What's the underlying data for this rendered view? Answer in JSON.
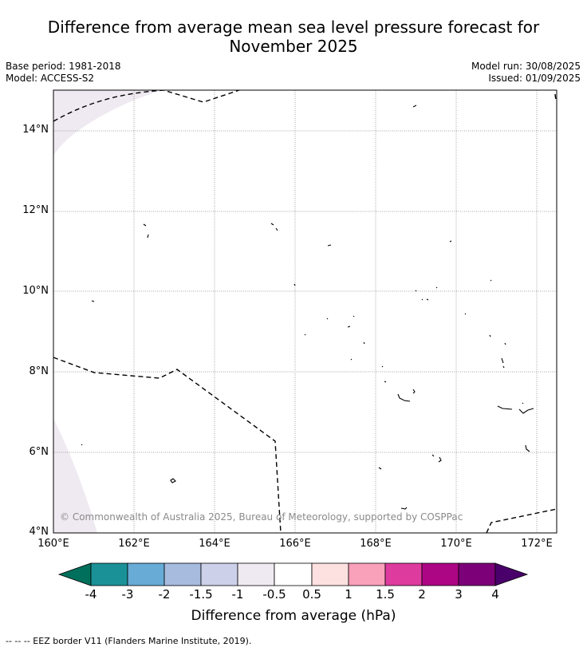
{
  "title_line1": "Difference from average mean sea level pressure forecast for",
  "title_line2": "November 2025",
  "meta_left": {
    "base_period": "Base period: 1981-2018",
    "model": "Model: ACCESS-S2"
  },
  "meta_right": {
    "model_run": "Model run: 30/08/2025",
    "issued": "Issued: 01/09/2025"
  },
  "map": {
    "lat_labels": [
      "14°N",
      "12°N",
      "10°N",
      "8°N",
      "6°N",
      "4°N"
    ],
    "lon_labels": [
      "160°E",
      "162°E",
      "164°E",
      "166°E",
      "168°E",
      "170°E",
      "172°E"
    ],
    "fill_color": "#efe9f1",
    "copyright": "© Commonwealth of Australia 2025, Bureau of Meteorology, supported by COSPPac"
  },
  "colorbar": {
    "title": "Difference from average (hPa)",
    "labels": [
      "-4",
      "-3",
      "-2",
      "-1.5",
      "-1",
      "-0.5",
      "0.5",
      "1",
      "1.5",
      "2",
      "3",
      "4"
    ],
    "colors": [
      "#006f5c",
      "#1a9197",
      "#67abd6",
      "#a7bbde",
      "#ccd0e8",
      "#efe9f1",
      "#ffffff",
      "#fde0e0",
      "#f9a0bb",
      "#de3b9e",
      "#ad0684",
      "#7c0078",
      "#4a006a"
    ]
  },
  "footnote": "-- -- -- EEZ border V11 (Flanders Marine Institute, 2019)."
}
